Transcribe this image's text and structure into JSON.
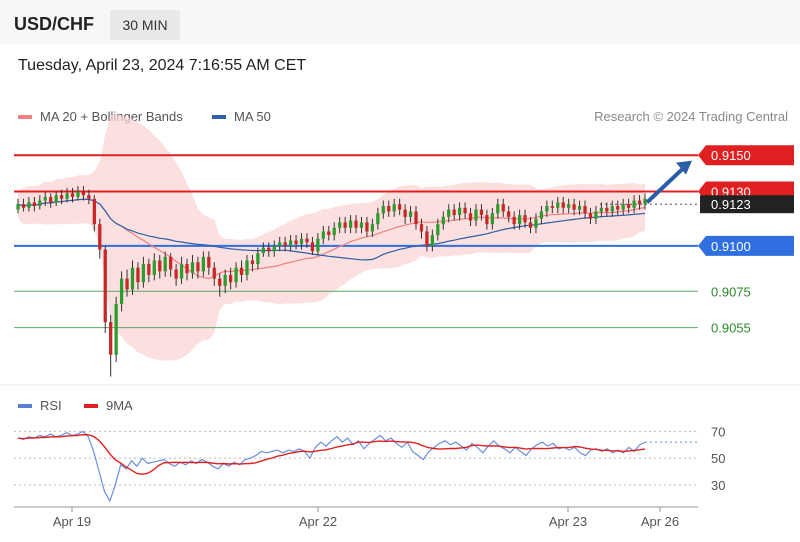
{
  "header": {
    "symbol": "USD/CHF",
    "timeframe": "30 MIN"
  },
  "datetime": "Tuesday, April 23, 2024 7:16:55 AM CET",
  "legend": {
    "ma20": "MA 20 + Bollinger Bands",
    "ma50": "MA 50",
    "ma20_color": "#f08080",
    "ma50_color": "#2f5fa8"
  },
  "copyright": "Research © 2024 Trading Central",
  "rsi_legend": {
    "rsi": "RSI",
    "ma": "9MA",
    "rsi_color": "#5b7fd6",
    "ma_color": "#e02020"
  },
  "chart_data": {
    "type": "candlestick",
    "price_range": [
      0.9025,
      0.9165
    ],
    "levels": [
      {
        "value": 0.915,
        "label": "0.9150",
        "style": "resistance",
        "color": "#e02020"
      },
      {
        "value": 0.913,
        "label": "0.9130",
        "style": "resistance",
        "color": "#e02020"
      },
      {
        "value": 0.9123,
        "label": "0.9123",
        "style": "current",
        "color": "#222222"
      },
      {
        "value": 0.91,
        "label": "0.9100",
        "style": "pivot",
        "color": "#2f6fe0"
      },
      {
        "value": 0.9075,
        "label": "0.9075",
        "style": "support",
        "color": "#2a8a2a"
      },
      {
        "value": 0.9055,
        "label": "0.9055",
        "style": "support",
        "color": "#2a8a2a"
      }
    ],
    "x_ticks": [
      "Apr 19",
      "Apr 22",
      "Apr 23",
      "Apr 26"
    ],
    "rsi_ticks": [
      70,
      50,
      30
    ],
    "rsi_range": [
      15,
      80
    ],
    "candles": [
      [
        0.912,
        0.9123,
        0.9118,
        0.9126
      ],
      [
        0.9123,
        0.9121,
        0.9119,
        0.9126
      ],
      [
        0.9121,
        0.9124,
        0.9119,
        0.9127
      ],
      [
        0.9124,
        0.9122,
        0.9119,
        0.9127
      ],
      [
        0.9122,
        0.9125,
        0.912,
        0.9128
      ],
      [
        0.9125,
        0.9127,
        0.9122,
        0.913
      ],
      [
        0.9127,
        0.9124,
        0.9121,
        0.9129
      ],
      [
        0.9124,
        0.9128,
        0.9122,
        0.913
      ],
      [
        0.9128,
        0.9126,
        0.9123,
        0.9131
      ],
      [
        0.9126,
        0.9129,
        0.9124,
        0.9132
      ],
      [
        0.9129,
        0.9127,
        0.9124,
        0.9132
      ],
      [
        0.9127,
        0.913,
        0.9125,
        0.9133
      ],
      [
        0.913,
        0.9128,
        0.9125,
        0.9133
      ],
      [
        0.9128,
        0.9126,
        0.9123,
        0.9131
      ],
      [
        0.9126,
        0.9112,
        0.9108,
        0.9128
      ],
      [
        0.9112,
        0.9098,
        0.9093,
        0.9115
      ],
      [
        0.9098,
        0.9058,
        0.9052,
        0.91
      ],
      [
        0.9058,
        0.904,
        0.9028,
        0.9062
      ],
      [
        0.904,
        0.9068,
        0.9036,
        0.9072
      ],
      [
        0.9068,
        0.9082,
        0.9064,
        0.9086
      ],
      [
        0.9082,
        0.9076,
        0.9072,
        0.9087
      ],
      [
        0.9076,
        0.9088,
        0.9073,
        0.9092
      ],
      [
        0.9088,
        0.908,
        0.9076,
        0.9091
      ],
      [
        0.908,
        0.909,
        0.9077,
        0.9094
      ],
      [
        0.909,
        0.9084,
        0.908,
        0.9093
      ],
      [
        0.9084,
        0.9092,
        0.9081,
        0.9096
      ],
      [
        0.9092,
        0.9086,
        0.9082,
        0.9095
      ],
      [
        0.9086,
        0.9094,
        0.9083,
        0.9097
      ],
      [
        0.9094,
        0.9087,
        0.9083,
        0.9096
      ],
      [
        0.9087,
        0.9082,
        0.9078,
        0.909
      ],
      [
        0.9082,
        0.909,
        0.9079,
        0.9094
      ],
      [
        0.909,
        0.9085,
        0.9081,
        0.9093
      ],
      [
        0.9085,
        0.9091,
        0.9082,
        0.9095
      ],
      [
        0.9091,
        0.9086,
        0.9082,
        0.9094
      ],
      [
        0.9086,
        0.9094,
        0.9083,
        0.9097
      ],
      [
        0.9094,
        0.9088,
        0.9084,
        0.9097
      ],
      [
        0.9088,
        0.9082,
        0.9078,
        0.9091
      ],
      [
        0.9082,
        0.9078,
        0.9072,
        0.9085
      ],
      [
        0.9078,
        0.9084,
        0.9074,
        0.9087
      ],
      [
        0.9084,
        0.908,
        0.9076,
        0.9088
      ],
      [
        0.908,
        0.9088,
        0.9077,
        0.9091
      ],
      [
        0.9088,
        0.9084,
        0.908,
        0.9092
      ],
      [
        0.9084,
        0.9092,
        0.9081,
        0.9095
      ],
      [
        0.9092,
        0.909,
        0.9086,
        0.9095
      ],
      [
        0.909,
        0.9096,
        0.9087,
        0.9099
      ],
      [
        0.9096,
        0.9099,
        0.9094,
        0.9102
      ],
      [
        0.9099,
        0.9097,
        0.9094,
        0.9102
      ],
      [
        0.9097,
        0.91,
        0.9094,
        0.9103
      ],
      [
        0.91,
        0.9102,
        0.9097,
        0.9105
      ],
      [
        0.9102,
        0.91,
        0.9097,
        0.9105
      ],
      [
        0.91,
        0.9103,
        0.9097,
        0.9106
      ],
      [
        0.9103,
        0.9101,
        0.9098,
        0.9106
      ],
      [
        0.9101,
        0.9104,
        0.9098,
        0.9107
      ],
      [
        0.9104,
        0.9102,
        0.9099,
        0.9107
      ],
      [
        0.9102,
        0.9097,
        0.9095,
        0.9105
      ],
      [
        0.9097,
        0.9104,
        0.9095,
        0.9107
      ],
      [
        0.9104,
        0.9108,
        0.9101,
        0.9111
      ],
      [
        0.9108,
        0.9106,
        0.9103,
        0.9111
      ],
      [
        0.9106,
        0.911,
        0.9103,
        0.9113
      ],
      [
        0.911,
        0.9113,
        0.9107,
        0.9116
      ],
      [
        0.9113,
        0.911,
        0.9107,
        0.9116
      ],
      [
        0.911,
        0.9114,
        0.9107,
        0.9117
      ],
      [
        0.9114,
        0.911,
        0.9107,
        0.9117
      ],
      [
        0.911,
        0.9113,
        0.9107,
        0.9116
      ],
      [
        0.9113,
        0.9108,
        0.9105,
        0.9116
      ],
      [
        0.9108,
        0.9112,
        0.9105,
        0.9115
      ],
      [
        0.9112,
        0.9118,
        0.9109,
        0.9121
      ],
      [
        0.9118,
        0.9122,
        0.9115,
        0.9125
      ],
      [
        0.9122,
        0.9119,
        0.9116,
        0.9125
      ],
      [
        0.9119,
        0.9123,
        0.9116,
        0.9126
      ],
      [
        0.9123,
        0.912,
        0.9117,
        0.9126
      ],
      [
        0.912,
        0.9116,
        0.9112,
        0.9123
      ],
      [
        0.9116,
        0.9119,
        0.9113,
        0.9122
      ],
      [
        0.9119,
        0.9112,
        0.9109,
        0.9122
      ],
      [
        0.9112,
        0.9108,
        0.9104,
        0.9115
      ],
      [
        0.9108,
        0.91,
        0.9097,
        0.9111
      ],
      [
        0.91,
        0.9106,
        0.9097,
        0.9109
      ],
      [
        0.9106,
        0.9112,
        0.9103,
        0.9115
      ],
      [
        0.9112,
        0.9116,
        0.9109,
        0.9119
      ],
      [
        0.9116,
        0.912,
        0.9113,
        0.9123
      ],
      [
        0.912,
        0.9117,
        0.9114,
        0.9123
      ],
      [
        0.9117,
        0.9121,
        0.9114,
        0.9124
      ],
      [
        0.9121,
        0.9118,
        0.9115,
        0.9124
      ],
      [
        0.9118,
        0.9114,
        0.9111,
        0.9121
      ],
      [
        0.9114,
        0.912,
        0.9111,
        0.9123
      ],
      [
        0.912,
        0.9117,
        0.9114,
        0.9123
      ],
      [
        0.9117,
        0.9112,
        0.9109,
        0.912
      ],
      [
        0.9112,
        0.9118,
        0.9109,
        0.9121
      ],
      [
        0.9118,
        0.9123,
        0.9115,
        0.9126
      ],
      [
        0.9123,
        0.9119,
        0.9116,
        0.9126
      ],
      [
        0.9119,
        0.9116,
        0.9113,
        0.9122
      ],
      [
        0.9116,
        0.9112,
        0.9109,
        0.9119
      ],
      [
        0.9112,
        0.9117,
        0.9109,
        0.912
      ],
      [
        0.9117,
        0.9113,
        0.911,
        0.912
      ],
      [
        0.9113,
        0.911,
        0.9107,
        0.9116
      ],
      [
        0.911,
        0.9115,
        0.9107,
        0.9118
      ],
      [
        0.9115,
        0.9119,
        0.9112,
        0.9122
      ],
      [
        0.9119,
        0.9122,
        0.9116,
        0.9125
      ],
      [
        0.9122,
        0.9121,
        0.9118,
        0.9125
      ],
      [
        0.9121,
        0.9124,
        0.9118,
        0.9127
      ],
      [
        0.9124,
        0.9121,
        0.9118,
        0.9127
      ],
      [
        0.9121,
        0.9123,
        0.9118,
        0.9126
      ],
      [
        0.9123,
        0.912,
        0.9117,
        0.9126
      ],
      [
        0.912,
        0.9122,
        0.9117,
        0.9125
      ],
      [
        0.9122,
        0.9118,
        0.9115,
        0.9125
      ],
      [
        0.9118,
        0.9115,
        0.9112,
        0.9121
      ],
      [
        0.9115,
        0.9119,
        0.9112,
        0.9122
      ],
      [
        0.9119,
        0.9121,
        0.9116,
        0.9124
      ],
      [
        0.9121,
        0.9119,
        0.9116,
        0.9124
      ],
      [
        0.9119,
        0.9122,
        0.9116,
        0.9125
      ],
      [
        0.9122,
        0.912,
        0.9117,
        0.9125
      ],
      [
        0.912,
        0.9123,
        0.9117,
        0.9126
      ],
      [
        0.9123,
        0.9121,
        0.9118,
        0.9126
      ],
      [
        0.9121,
        0.9125,
        0.9118,
        0.9128
      ],
      [
        0.9125,
        0.9123,
        0.912,
        0.9128
      ],
      [
        0.9123,
        0.9126,
        0.912,
        0.9129
      ]
    ],
    "rsi": [
      65,
      64,
      66,
      65,
      67,
      66,
      68,
      66,
      67,
      69,
      67,
      68,
      70,
      66,
      55,
      40,
      25,
      18,
      30,
      45,
      42,
      48,
      44,
      50,
      46,
      47,
      48,
      49,
      46,
      44,
      47,
      45,
      48,
      46,
      49,
      47,
      44,
      42,
      46,
      44,
      47,
      45,
      49,
      50,
      52,
      55,
      54,
      55,
      56,
      54,
      56,
      55,
      57,
      55,
      50,
      58,
      62,
      59,
      63,
      66,
      62,
      65,
      60,
      63,
      57,
      61,
      64,
      67,
      63,
      65,
      61,
      58,
      62,
      55,
      52,
      49,
      55,
      58,
      61,
      63,
      60,
      62,
      59,
      56,
      61,
      58,
      54,
      59,
      63,
      59,
      57,
      54,
      58,
      55,
      52,
      57,
      60,
      62,
      59,
      61,
      57,
      58,
      56,
      58,
      54,
      52,
      56,
      57,
      55,
      57,
      54,
      56,
      54,
      58,
      55,
      60,
      62
    ]
  }
}
